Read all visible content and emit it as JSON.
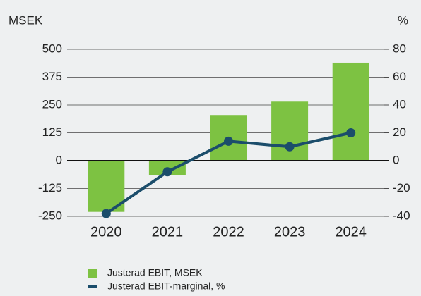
{
  "chart_data": {
    "type": "bar",
    "y_label": "MSEK",
    "y2_label": "%",
    "categories": [
      "2020",
      "2021",
      "2022",
      "2023",
      "2024"
    ],
    "series": [
      {
        "name": "Justerad EBIT, MSEK",
        "color": "#7dc242",
        "values": [
          -230,
          -65,
          205,
          265,
          440
        ]
      },
      {
        "name": "Justerad EBIT-marginal, %",
        "color": "#1b4d6b",
        "axis": "y2",
        "values": [
          -38,
          -8,
          14,
          10,
          20
        ]
      }
    ],
    "ylim": [
      -250,
      500
    ],
    "yticks": [
      -250,
      -125,
      0,
      125,
      250,
      375,
      500
    ],
    "y2lim": [
      -40,
      80
    ],
    "y2ticks": [
      -40,
      -20,
      0,
      20,
      40,
      60,
      80
    ],
    "grid": true
  }
}
